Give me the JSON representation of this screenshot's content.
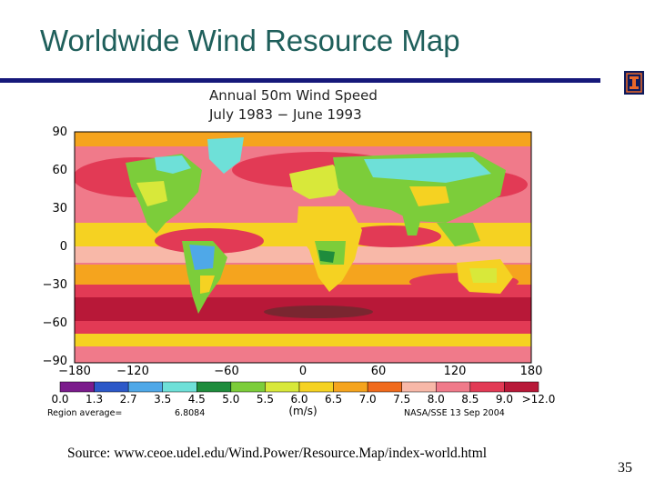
{
  "slide": {
    "title": "Worldwide Wind Resource Map",
    "source": "Source: www.ceoe.udel.edu/Wind.Power/Resource.Map/index-world.html",
    "page_number": "35"
  },
  "colors": {
    "title": "#1f5f5b",
    "rule": "#16187a",
    "logo_bg": "#0d1a5c",
    "logo_fg": "#e8672a"
  },
  "logo": {
    "icon": "illinois-i-logo"
  },
  "map": {
    "title_line1": "Annual 50m Wind Speed",
    "title_line2": "July 1983 − June 1993",
    "y_ticks": [
      "90",
      "60",
      "30",
      "0",
      "−30",
      "−60",
      "−90"
    ],
    "x_ticks": [
      "−180",
      "−120",
      "−60",
      "0",
      "60",
      "120",
      "180"
    ],
    "legend_labels": [
      "0.0",
      "1.3",
      "2.7",
      "3.5",
      "4.5",
      "5.0",
      "5.5",
      "6.0",
      "6.5",
      "7.0",
      "7.5",
      "8.0",
      "8.5",
      "9.0",
      ">12.0"
    ],
    "legend_colors": [
      "#7b1b8c",
      "#2c58c8",
      "#4fa8e8",
      "#6ee0d8",
      "#1e8c3c",
      "#7ccd3a",
      "#d8e83a",
      "#f5d222",
      "#f5a41e",
      "#f06a1c",
      "#f8b8a8",
      "#f07a8a",
      "#e23a55",
      "#b81838"
    ],
    "unit": "(m/s)",
    "region_average_label": "Region average=",
    "region_average_value": "6.8084",
    "credit": "NASA/SSE  13 Sep 2004"
  }
}
